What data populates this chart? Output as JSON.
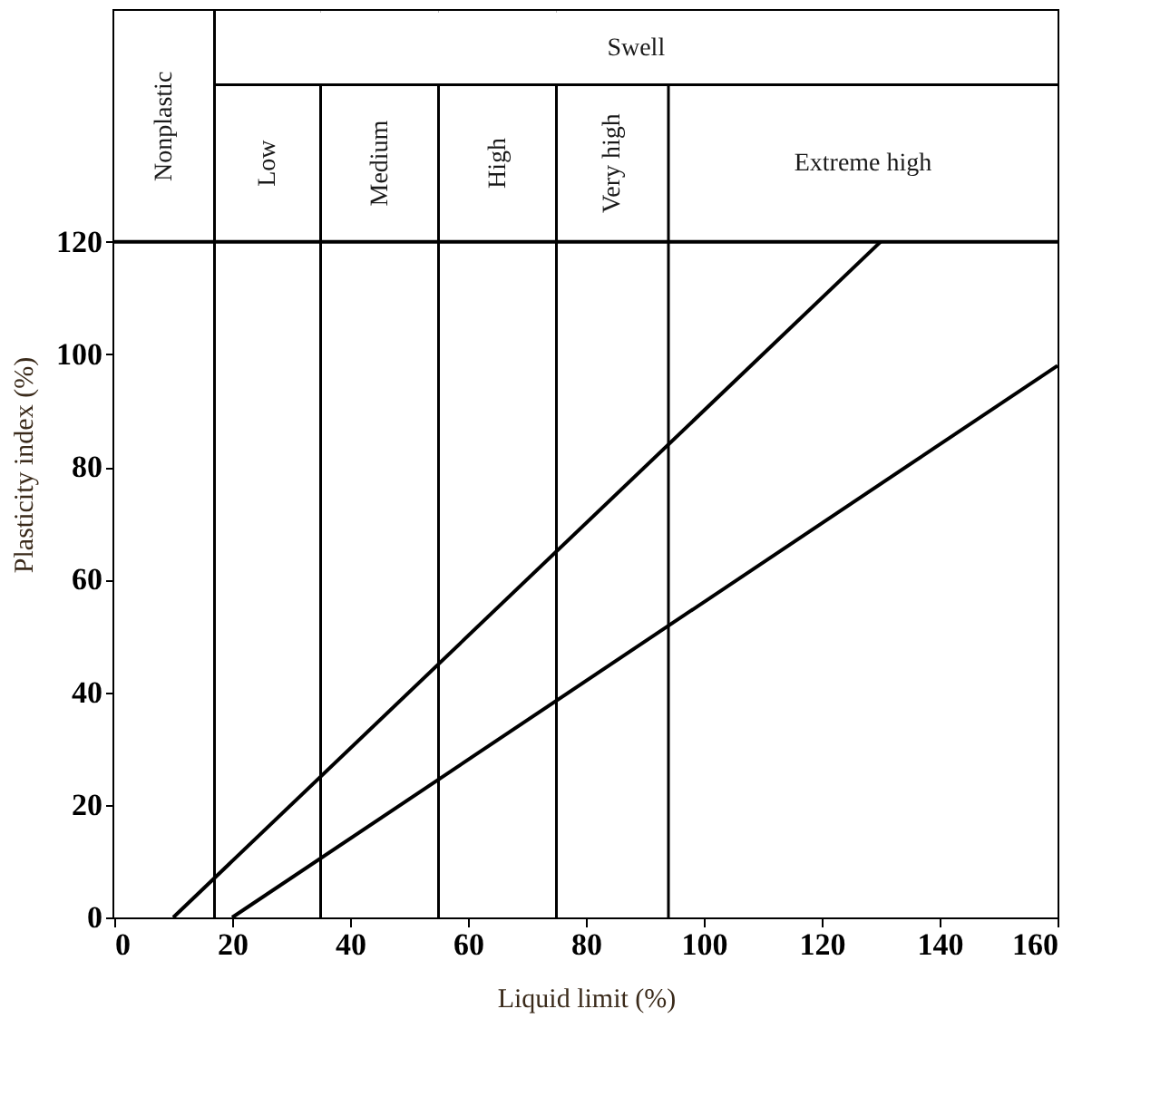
{
  "chart_data": {
    "type": "line",
    "xlabel": "Liquid limit (%)",
    "ylabel": "Plasticity index (%)",
    "series": [
      {
        "color": "#000000",
        "x": [
          10,
          130
        ],
        "values": [
          0,
          120
        ]
      },
      {
        "color": "#000000",
        "x": [
          20,
          160
        ],
        "values": [
          0,
          98
        ]
      }
    ],
    "xlim": [
      0,
      160
    ],
    "xticks": [
      0,
      20,
      40,
      60,
      80,
      100,
      120,
      140,
      160
    ],
    "ylim": [
      0,
      161
    ],
    "yticks": [
      0,
      20,
      40,
      60,
      80,
      100,
      120
    ],
    "ref_lines": [
      {
        "axis": "y",
        "value": 120,
        "color": "#000000"
      }
    ],
    "bands": [
      {
        "axis": "x",
        "from": 0,
        "to": 17,
        "label": "Nonplastic",
        "color": "#ffffff"
      },
      {
        "axis": "x",
        "from": 17,
        "to": 35,
        "label": "Low",
        "color": "#ffffff"
      },
      {
        "axis": "x",
        "from": 35,
        "to": 55,
        "label": "Medium",
        "color": "#ffffff"
      },
      {
        "axis": "x",
        "from": 55,
        "to": 75,
        "label": "High",
        "color": "#ffffff"
      },
      {
        "axis": "x",
        "from": 75,
        "to": 94,
        "label": "Very high",
        "color": "#ffffff"
      },
      {
        "axis": "x",
        "from": 94,
        "to": 160,
        "label": "Extreme high",
        "color": "#ffffff"
      }
    ],
    "annotations": [
      "Swell"
    ],
    "grid": false,
    "marker": "none",
    "line_style": "solid"
  }
}
